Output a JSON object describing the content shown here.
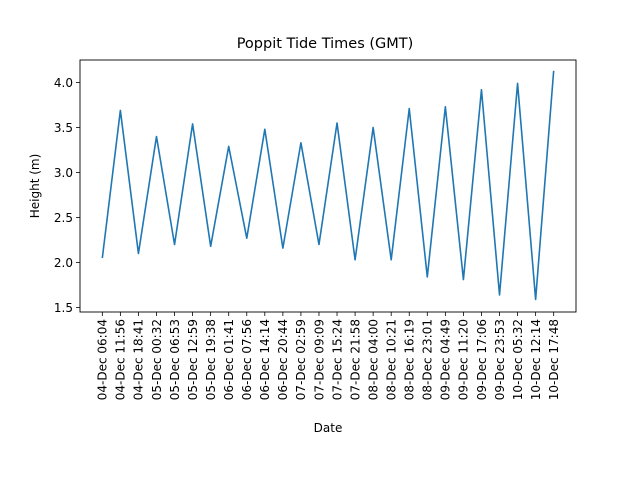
{
  "chart_data": {
    "type": "line",
    "title": "Poppit Tide Times (GMT)",
    "xlabel": "Date",
    "ylabel": "Height (m)",
    "ylim": [
      1.45,
      4.25
    ],
    "y_ticks": [
      1.5,
      2.0,
      2.5,
      3.0,
      3.5,
      4.0
    ],
    "y_tick_labels": [
      "1.5",
      "2.0",
      "2.5",
      "3.0",
      "3.5",
      "4.0"
    ],
    "grid": false,
    "color": "#1f77b4",
    "categories": [
      "04-Dec 06:04",
      "04-Dec 11:56",
      "04-Dec 18:41",
      "05-Dec 00:32",
      "05-Dec 06:53",
      "05-Dec 12:59",
      "05-Dec 19:38",
      "06-Dec 01:41",
      "06-Dec 07:56",
      "06-Dec 14:14",
      "06-Dec 20:44",
      "07-Dec 02:59",
      "07-Dec 09:09",
      "07-Dec 15:24",
      "07-Dec 21:58",
      "08-Dec 04:00",
      "08-Dec 10:21",
      "08-Dec 16:19",
      "08-Dec 23:01",
      "09-Dec 04:49",
      "09-Dec 11:20",
      "09-Dec 17:06",
      "09-Dec 23:53",
      "10-Dec 05:32",
      "10-Dec 12:14",
      "10-Dec 17:48"
    ],
    "values": [
      2.05,
      3.69,
      2.1,
      3.4,
      2.2,
      3.54,
      2.18,
      3.29,
      2.27,
      3.48,
      2.16,
      3.33,
      2.2,
      3.55,
      2.03,
      3.5,
      2.03,
      3.71,
      1.84,
      3.73,
      1.81,
      3.92,
      1.64,
      3.99,
      1.59,
      4.13
    ]
  }
}
